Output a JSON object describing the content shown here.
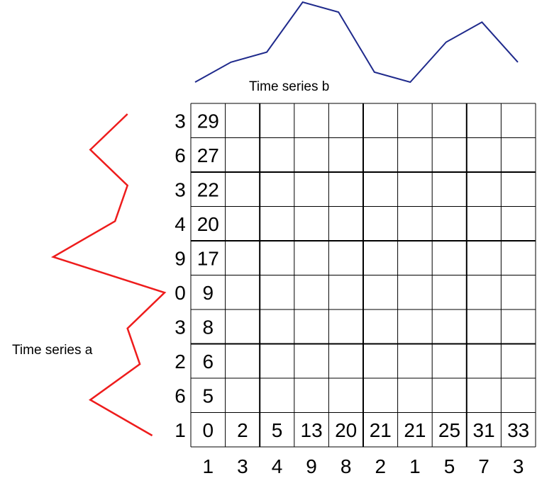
{
  "labels": {
    "series_a": "Time series a",
    "series_b": "Time series b"
  },
  "colors": {
    "series_a": "#ee1c1c",
    "series_b": "#1f2a8c",
    "grid": "#000000"
  },
  "series_b": [
    1,
    3,
    4,
    9,
    8,
    2,
    1,
    5,
    7,
    3
  ],
  "series_a": [
    1,
    6,
    2,
    3,
    0,
    9,
    4,
    3,
    6,
    3
  ],
  "row_labels_a": [
    "3",
    "6",
    "3",
    "4",
    "9",
    "0",
    "3",
    "2",
    "6",
    "1"
  ],
  "row_cumulative": [
    "29",
    "27",
    "22",
    "20",
    "17",
    "9",
    "8",
    "6",
    "5",
    "0"
  ],
  "bottom_row_cumulative": [
    "0",
    "2",
    "5",
    "13",
    "20",
    "21",
    "21",
    "25",
    "31",
    "33"
  ],
  "bottom_labels_b": [
    "1",
    "3",
    "4",
    "9",
    "8",
    "2",
    "1",
    "5",
    "7",
    "3"
  ]
}
